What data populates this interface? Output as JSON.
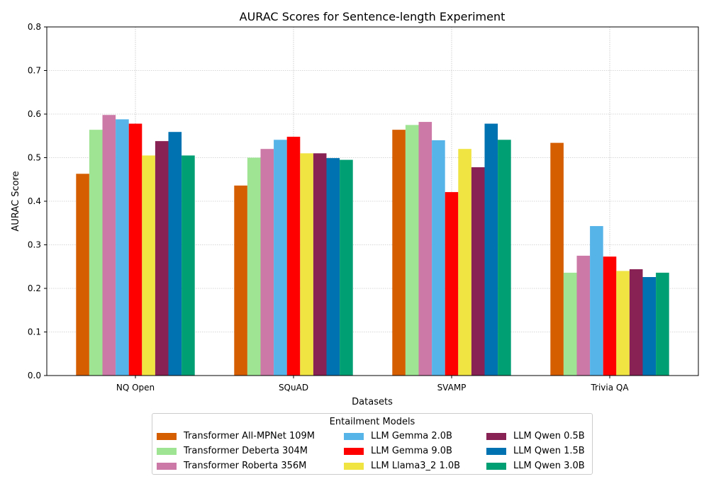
{
  "chart_data": {
    "type": "bar",
    "title": "AURAC Scores for Sentence-length Experiment",
    "xlabel": "Datasets",
    "ylabel": "AURAC Score",
    "ylim": [
      0,
      0.8
    ],
    "yticks": [
      "0.0",
      "0.1",
      "0.2",
      "0.3",
      "0.4",
      "0.5",
      "0.6",
      "0.7",
      "0.8"
    ],
    "grid": true,
    "categories": [
      "NQ Open",
      "SQuAD",
      "SVAMP",
      "Trivia QA"
    ],
    "legend": {
      "title": "Entailment Models",
      "placement": "below-center",
      "columns": 3
    },
    "series": [
      {
        "name": "Transformer All-MPNet 109M",
        "color": "#d55e00",
        "values": [
          0.463,
          0.436,
          0.564,
          0.534
        ]
      },
      {
        "name": "Transformer Deberta 304M",
        "color": "#9ee493",
        "values": [
          0.564,
          0.5,
          0.575,
          0.236
        ]
      },
      {
        "name": "Transformer Roberta 356M",
        "color": "#cc79a7",
        "values": [
          0.598,
          0.52,
          0.582,
          0.275
        ]
      },
      {
        "name": "LLM Gemma 2.0B",
        "color": "#56b4e9",
        "values": [
          0.588,
          0.541,
          0.54,
          0.343
        ]
      },
      {
        "name": "LLM Gemma 9.0B",
        "color": "#ff0000",
        "values": [
          0.578,
          0.548,
          0.421,
          0.273
        ]
      },
      {
        "name": "LLM Llama3_2 1.0B",
        "color": "#f0e442",
        "values": [
          0.505,
          0.51,
          0.52,
          0.24
        ]
      },
      {
        "name": "LLM Qwen 0.5B",
        "color": "#882255",
        "values": [
          0.538,
          0.51,
          0.478,
          0.244
        ]
      },
      {
        "name": "LLM Qwen 1.5B",
        "color": "#0072b2",
        "values": [
          0.559,
          0.499,
          0.578,
          0.226
        ]
      },
      {
        "name": "LLM Qwen 3.0B",
        "color": "#009e73",
        "values": [
          0.505,
          0.495,
          0.541,
          0.236
        ]
      }
    ]
  }
}
